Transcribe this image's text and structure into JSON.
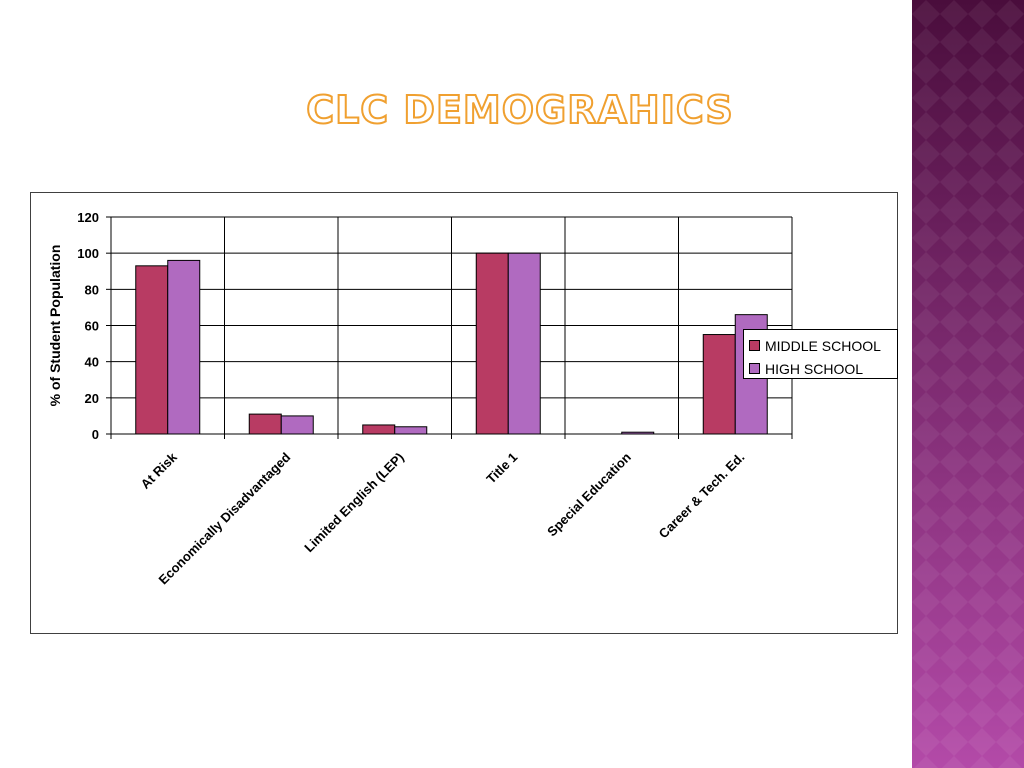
{
  "slide": {
    "title": "CLC DEMOGRAHICS",
    "title_color": "#f0a030",
    "side_band_colors": [
      "#4a0d3c",
      "#b34aa8"
    ]
  },
  "chart_data": {
    "type": "bar",
    "title": "",
    "xlabel": "",
    "ylabel": "% of Student Population",
    "ylim": [
      0,
      120
    ],
    "yticks": [
      0,
      20,
      40,
      60,
      80,
      100,
      120
    ],
    "grid": true,
    "legend_position": "right",
    "categories": [
      "At Risk",
      "Economically Disadvantaged",
      "Limited English (LEP)",
      "Title 1",
      "Special Education",
      "Career & Tech. Ed."
    ],
    "series": [
      {
        "name": "MIDDLE SCHOOL",
        "color": "#b83b63",
        "values": [
          93,
          11,
          5,
          100,
          0,
          55
        ]
      },
      {
        "name": "HIGH SCHOOL",
        "color": "#b06ac0",
        "values": [
          96,
          10,
          4,
          100,
          1,
          66
        ]
      }
    ]
  }
}
